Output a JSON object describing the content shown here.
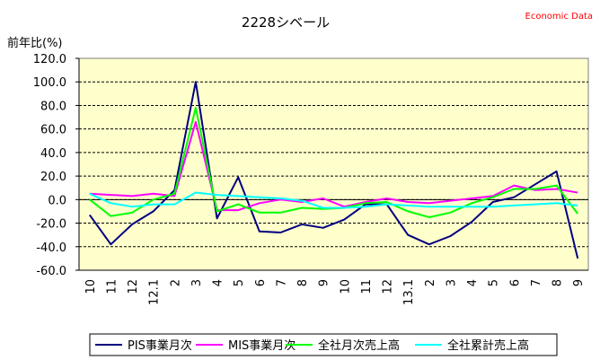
{
  "chart_data": {
    "type": "line",
    "title": "2228シベール",
    "ylabel": "前年比(%)",
    "watermark": "Economic Data",
    "categories": [
      "10",
      "11",
      "12",
      "12.1",
      "2",
      "3",
      "4",
      "5",
      "6",
      "7",
      "8",
      "9",
      "10",
      "11",
      "12",
      "13.1",
      "2",
      "3",
      "4",
      "5",
      "6",
      "7",
      "8",
      "9"
    ],
    "ylim": [
      -60,
      120
    ],
    "ytick_labels": [
      "120.0",
      "100.0",
      "80.0",
      "60.0",
      "40.0",
      "20.0",
      "0.0",
      "-20.0",
      "-40.0",
      "-60.0"
    ],
    "grid": "horizontal-dashed",
    "legend_position": "bottom",
    "series": [
      {
        "name": "PIS事業月次",
        "color": "#000080",
        "values": [
          -13,
          -38,
          -21,
          -10,
          8,
          100,
          -16,
          19,
          -27,
          -28,
          -21,
          -24,
          -17,
          -4,
          -4,
          -30,
          -38,
          -31,
          -19,
          -2,
          2,
          13,
          24,
          -50
        ]
      },
      {
        "name": "MIS事業月次",
        "color": "#FF00FF",
        "values": [
          5,
          4,
          3,
          5,
          3,
          66,
          -9,
          -9,
          -3,
          0,
          -2,
          1,
          -6,
          -2,
          1,
          -2,
          -3,
          -1,
          1,
          3,
          12,
          8,
          9,
          6
        ]
      },
      {
        "name": "全社月次売上高",
        "color": "#00FF00",
        "values": [
          0,
          -14,
          -11,
          0,
          5,
          78,
          -10,
          -4,
          -11,
          -11,
          -7,
          -8,
          -7,
          -3,
          -2,
          -10,
          -15,
          -11,
          -3,
          2,
          9,
          9,
          12,
          -12
        ]
      },
      {
        "name": "全社累計売上高",
        "color": "#00FFFF",
        "values": [
          5,
          -3,
          -6,
          -4,
          -4,
          6,
          4,
          3,
          2,
          1,
          -1,
          -7,
          -7,
          -6,
          -4,
          -5,
          -6,
          -6,
          -6,
          -6,
          -5,
          -4,
          -3,
          -5
        ]
      }
    ]
  }
}
